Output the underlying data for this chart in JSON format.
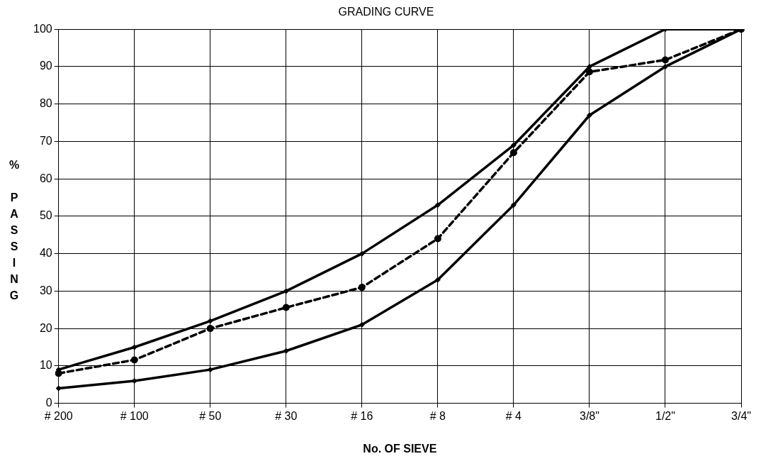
{
  "chart_data": {
    "type": "line",
    "title": "GRADING CURVE",
    "xlabel": "No. OF SIEVE",
    "ylabel": "% PASSING",
    "categories": [
      "# 200",
      "# 100",
      "# 50",
      "# 30",
      "# 16",
      "# 8",
      "# 4",
      "3/8\"",
      "1/2\"",
      "3/4\""
    ],
    "series": [
      {
        "color": "#000000",
        "marker": "diamond",
        "line_style": "solid",
        "values": [
          9,
          15,
          22,
          30,
          40,
          53,
          69,
          90,
          100,
          100
        ]
      },
      {
        "color": "#000000",
        "marker": "diamond",
        "line_style": "solid",
        "values": [
          4,
          6,
          9,
          14,
          21,
          33,
          53,
          77,
          90,
          100
        ]
      },
      {
        "color": "#000000",
        "marker": "circle",
        "line_style": "dashed",
        "values": [
          8,
          11.6,
          20,
          25.6,
          31,
          44,
          67,
          88.6,
          91.8,
          100
        ]
      }
    ],
    "ylim": [
      0,
      100
    ],
    "yticks": [
      0,
      10,
      20,
      30,
      40,
      50,
      60,
      70,
      80,
      90,
      100
    ],
    "grid": true,
    "legend": false
  }
}
